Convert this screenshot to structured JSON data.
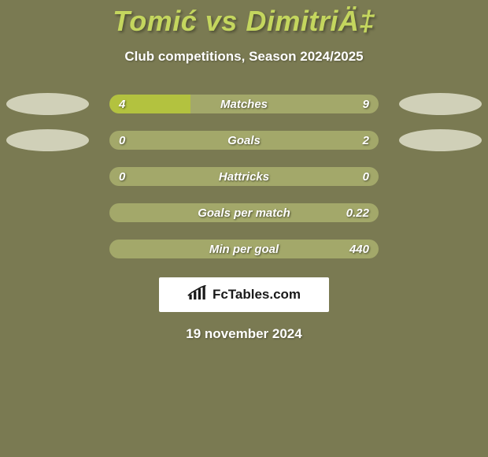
{
  "header": {
    "title": "Tomić vs DimitriÄ‡",
    "subtitle": "Club competitions, Season 2024/2025"
  },
  "colors": {
    "title_color": "#c4d65e",
    "bar_bg": "#a3a86a",
    "fill_green": "#b3c23f",
    "oval_bg": "#d0d0b8",
    "page_bg": "#7a7a52"
  },
  "stats": [
    {
      "label": "Matches",
      "left_val": "4",
      "right_val": "9",
      "left_pct": 30,
      "right_pct": 0,
      "left_fill": "#b3c23f",
      "show_ovals": true
    },
    {
      "label": "Goals",
      "left_val": "0",
      "right_val": "2",
      "left_pct": 0,
      "right_pct": 0,
      "left_fill": "#b3c23f",
      "show_ovals": true
    },
    {
      "label": "Hattricks",
      "left_val": "0",
      "right_val": "0",
      "left_pct": 0,
      "right_pct": 0,
      "left_fill": "#b3c23f",
      "show_ovals": false
    },
    {
      "label": "Goals per match",
      "left_val": "",
      "right_val": "0.22",
      "left_pct": 0,
      "right_pct": 0,
      "left_fill": "#b3c23f",
      "show_ovals": false
    },
    {
      "label": "Min per goal",
      "left_val": "",
      "right_val": "440",
      "left_pct": 0,
      "right_pct": 0,
      "left_fill": "#b3c23f",
      "show_ovals": false
    }
  ],
  "branding": {
    "text": "FcTables.com"
  },
  "footer": {
    "date": "19 november 2024"
  }
}
